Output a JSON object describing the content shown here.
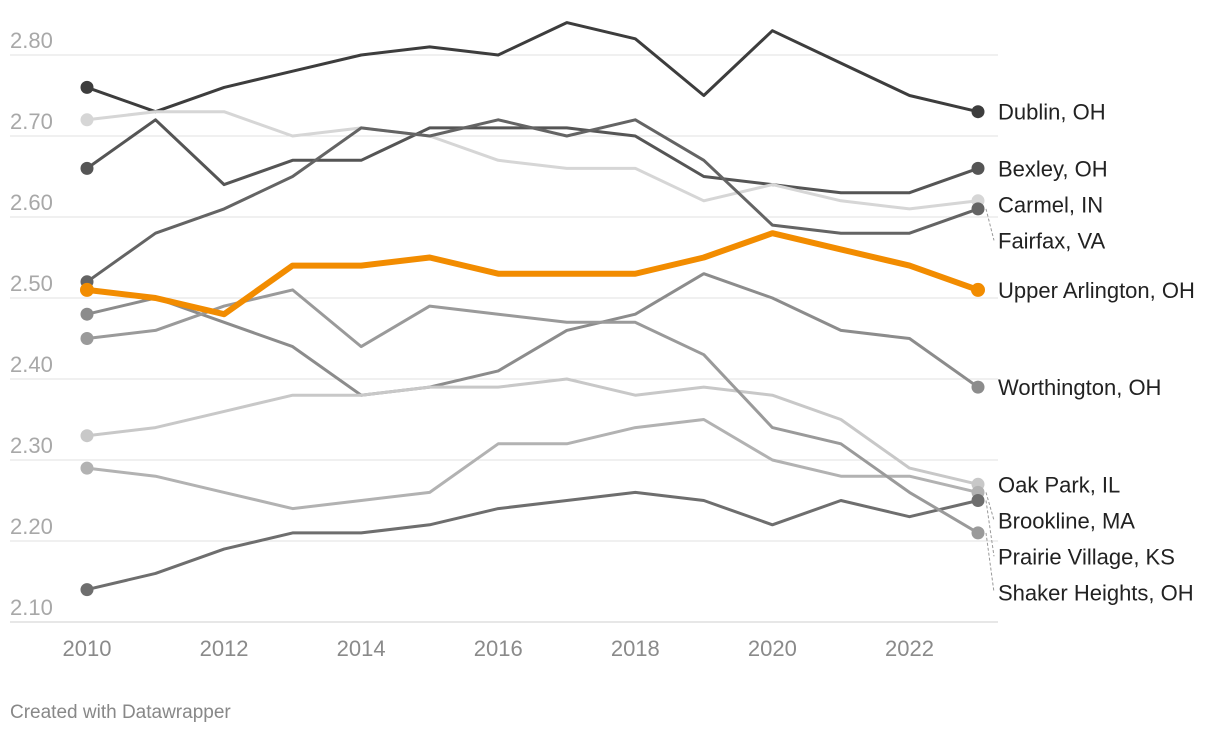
{
  "chart_data": {
    "type": "line",
    "title": "",
    "xlabel": "",
    "ylabel": "",
    "x": [
      2010,
      2011,
      2012,
      2013,
      2014,
      2015,
      2016,
      2017,
      2018,
      2019,
      2020,
      2021,
      2022,
      2023
    ],
    "xlim": [
      2010,
      2023
    ],
    "ylim": [
      2.1,
      2.8
    ],
    "x_ticks": [
      "2010",
      "2012",
      "2014",
      "2016",
      "2018",
      "2020",
      "2022"
    ],
    "y_ticks": [
      "2.80",
      "2.70",
      "2.60",
      "2.50",
      "2.40",
      "2.30",
      "2.20",
      "2.10"
    ],
    "grid": true,
    "series": [
      {
        "name": "Dublin, OH",
        "color": "#3d3d3d",
        "highlight": false,
        "values": [
          2.76,
          2.73,
          2.76,
          2.78,
          2.8,
          2.81,
          2.8,
          2.84,
          2.82,
          2.75,
          2.83,
          2.79,
          2.75,
          2.73
        ]
      },
      {
        "name": "Bexley, OH",
        "color": "#555555",
        "highlight": false,
        "values": [
          2.66,
          2.72,
          2.64,
          2.67,
          2.67,
          2.71,
          2.71,
          2.71,
          2.7,
          2.65,
          2.64,
          2.63,
          2.63,
          2.66
        ]
      },
      {
        "name": "Carmel, IN",
        "color": "#d6d6d6",
        "highlight": false,
        "values": [
          2.72,
          2.73,
          2.73,
          2.7,
          2.71,
          2.7,
          2.67,
          2.66,
          2.66,
          2.62,
          2.64,
          2.62,
          2.61,
          2.62
        ]
      },
      {
        "name": "Fairfax, VA",
        "color": "#646464",
        "highlight": false,
        "values": [
          2.52,
          2.58,
          2.61,
          2.65,
          2.71,
          2.7,
          2.72,
          2.7,
          2.72,
          2.67,
          2.59,
          2.58,
          2.58,
          2.61
        ]
      },
      {
        "name": "Upper Arlington, OH",
        "color": "#f28c00",
        "highlight": true,
        "values": [
          2.51,
          2.5,
          2.48,
          2.54,
          2.54,
          2.55,
          2.53,
          2.53,
          2.53,
          2.55,
          2.58,
          2.56,
          2.54,
          2.51
        ]
      },
      {
        "name": "Worthington, OH",
        "color": "#8c8c8c",
        "highlight": false,
        "values": [
          2.48,
          2.5,
          2.47,
          2.44,
          2.38,
          2.39,
          2.41,
          2.46,
          2.48,
          2.53,
          2.5,
          2.46,
          2.45,
          2.39
        ]
      },
      {
        "name": "Oak Park, IL",
        "color": "#c8c8c8",
        "highlight": false,
        "values": [
          2.33,
          2.34,
          2.36,
          2.38,
          2.38,
          2.39,
          2.39,
          2.4,
          2.38,
          2.39,
          2.38,
          2.35,
          2.29,
          2.27
        ]
      },
      {
        "name": "Brookline, MA",
        "color": "#b2b2b2",
        "highlight": false,
        "values": [
          2.29,
          2.28,
          2.26,
          2.24,
          2.25,
          2.26,
          2.32,
          2.32,
          2.34,
          2.35,
          2.3,
          2.28,
          2.28,
          2.26
        ]
      },
      {
        "name": "Prairie Village, KS",
        "color": "#6e6e6e",
        "highlight": false,
        "values": [
          2.14,
          2.16,
          2.19,
          2.21,
          2.21,
          2.22,
          2.24,
          2.25,
          2.26,
          2.25,
          2.22,
          2.25,
          2.23,
          2.25
        ]
      },
      {
        "name": "Shaker Heights, OH",
        "color": "#9a9a9a",
        "highlight": false,
        "values": [
          2.45,
          2.46,
          2.49,
          2.51,
          2.44,
          2.49,
          2.48,
          2.47,
          2.47,
          2.43,
          2.34,
          2.32,
          2.26,
          2.21
        ]
      }
    ]
  },
  "footer": {
    "credit": "Created with Datawrapper"
  }
}
